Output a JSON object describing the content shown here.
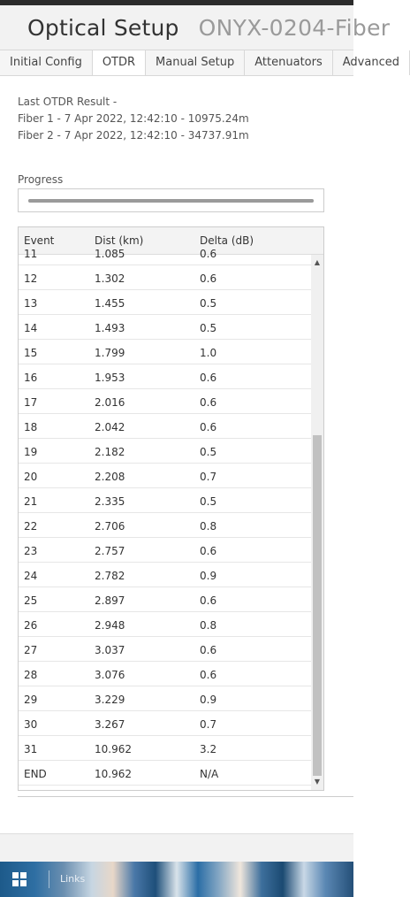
{
  "header": {
    "title": "Optical Setup",
    "device": "ONYX-0204-Fiber"
  },
  "tabs": [
    {
      "label": "Initial Config",
      "active": false
    },
    {
      "label": "OTDR",
      "active": true
    },
    {
      "label": "Manual Setup",
      "active": false
    },
    {
      "label": "Attenuators",
      "active": false
    },
    {
      "label": "Advanced",
      "active": false
    }
  ],
  "result": {
    "heading": "Last OTDR Result -",
    "fiber1": "Fiber 1 - 7 Apr 2022, 12:42:10 - 10975.24m",
    "fiber2": "Fiber 2 - 7 Apr 2022, 12:42:10 - 34737.91m"
  },
  "progress": {
    "label": "Progress",
    "value_fraction": 1.0
  },
  "table": {
    "columns": [
      "Event",
      "Dist (km)",
      "Delta (dB)"
    ],
    "rows": [
      [
        "11",
        "1.085",
        "0.6"
      ],
      [
        "12",
        "1.302",
        "0.6"
      ],
      [
        "13",
        "1.455",
        "0.5"
      ],
      [
        "14",
        "1.493",
        "0.5"
      ],
      [
        "15",
        "1.799",
        "1.0"
      ],
      [
        "16",
        "1.953",
        "0.6"
      ],
      [
        "17",
        "2.016",
        "0.6"
      ],
      [
        "18",
        "2.042",
        "0.6"
      ],
      [
        "19",
        "2.182",
        "0.5"
      ],
      [
        "20",
        "2.208",
        "0.7"
      ],
      [
        "21",
        "2.335",
        "0.5"
      ],
      [
        "22",
        "2.706",
        "0.8"
      ],
      [
        "23",
        "2.757",
        "0.6"
      ],
      [
        "24",
        "2.782",
        "0.9"
      ],
      [
        "25",
        "2.897",
        "0.6"
      ],
      [
        "26",
        "2.948",
        "0.8"
      ],
      [
        "27",
        "3.037",
        "0.6"
      ],
      [
        "28",
        "3.076",
        "0.6"
      ],
      [
        "29",
        "3.229",
        "0.9"
      ],
      [
        "30",
        "3.267",
        "0.7"
      ],
      [
        "31",
        "10.962",
        "3.2"
      ],
      [
        "END",
        "10.962",
        "N/A"
      ]
    ]
  },
  "icons": {
    "menu": "hamburger-menu-icon",
    "scroll_up": "scroll-up-arrow-icon",
    "scroll_down": "scroll-down-arrow-icon",
    "start": "windows-start-icon"
  },
  "taskbar": {
    "links_label": "Links"
  }
}
